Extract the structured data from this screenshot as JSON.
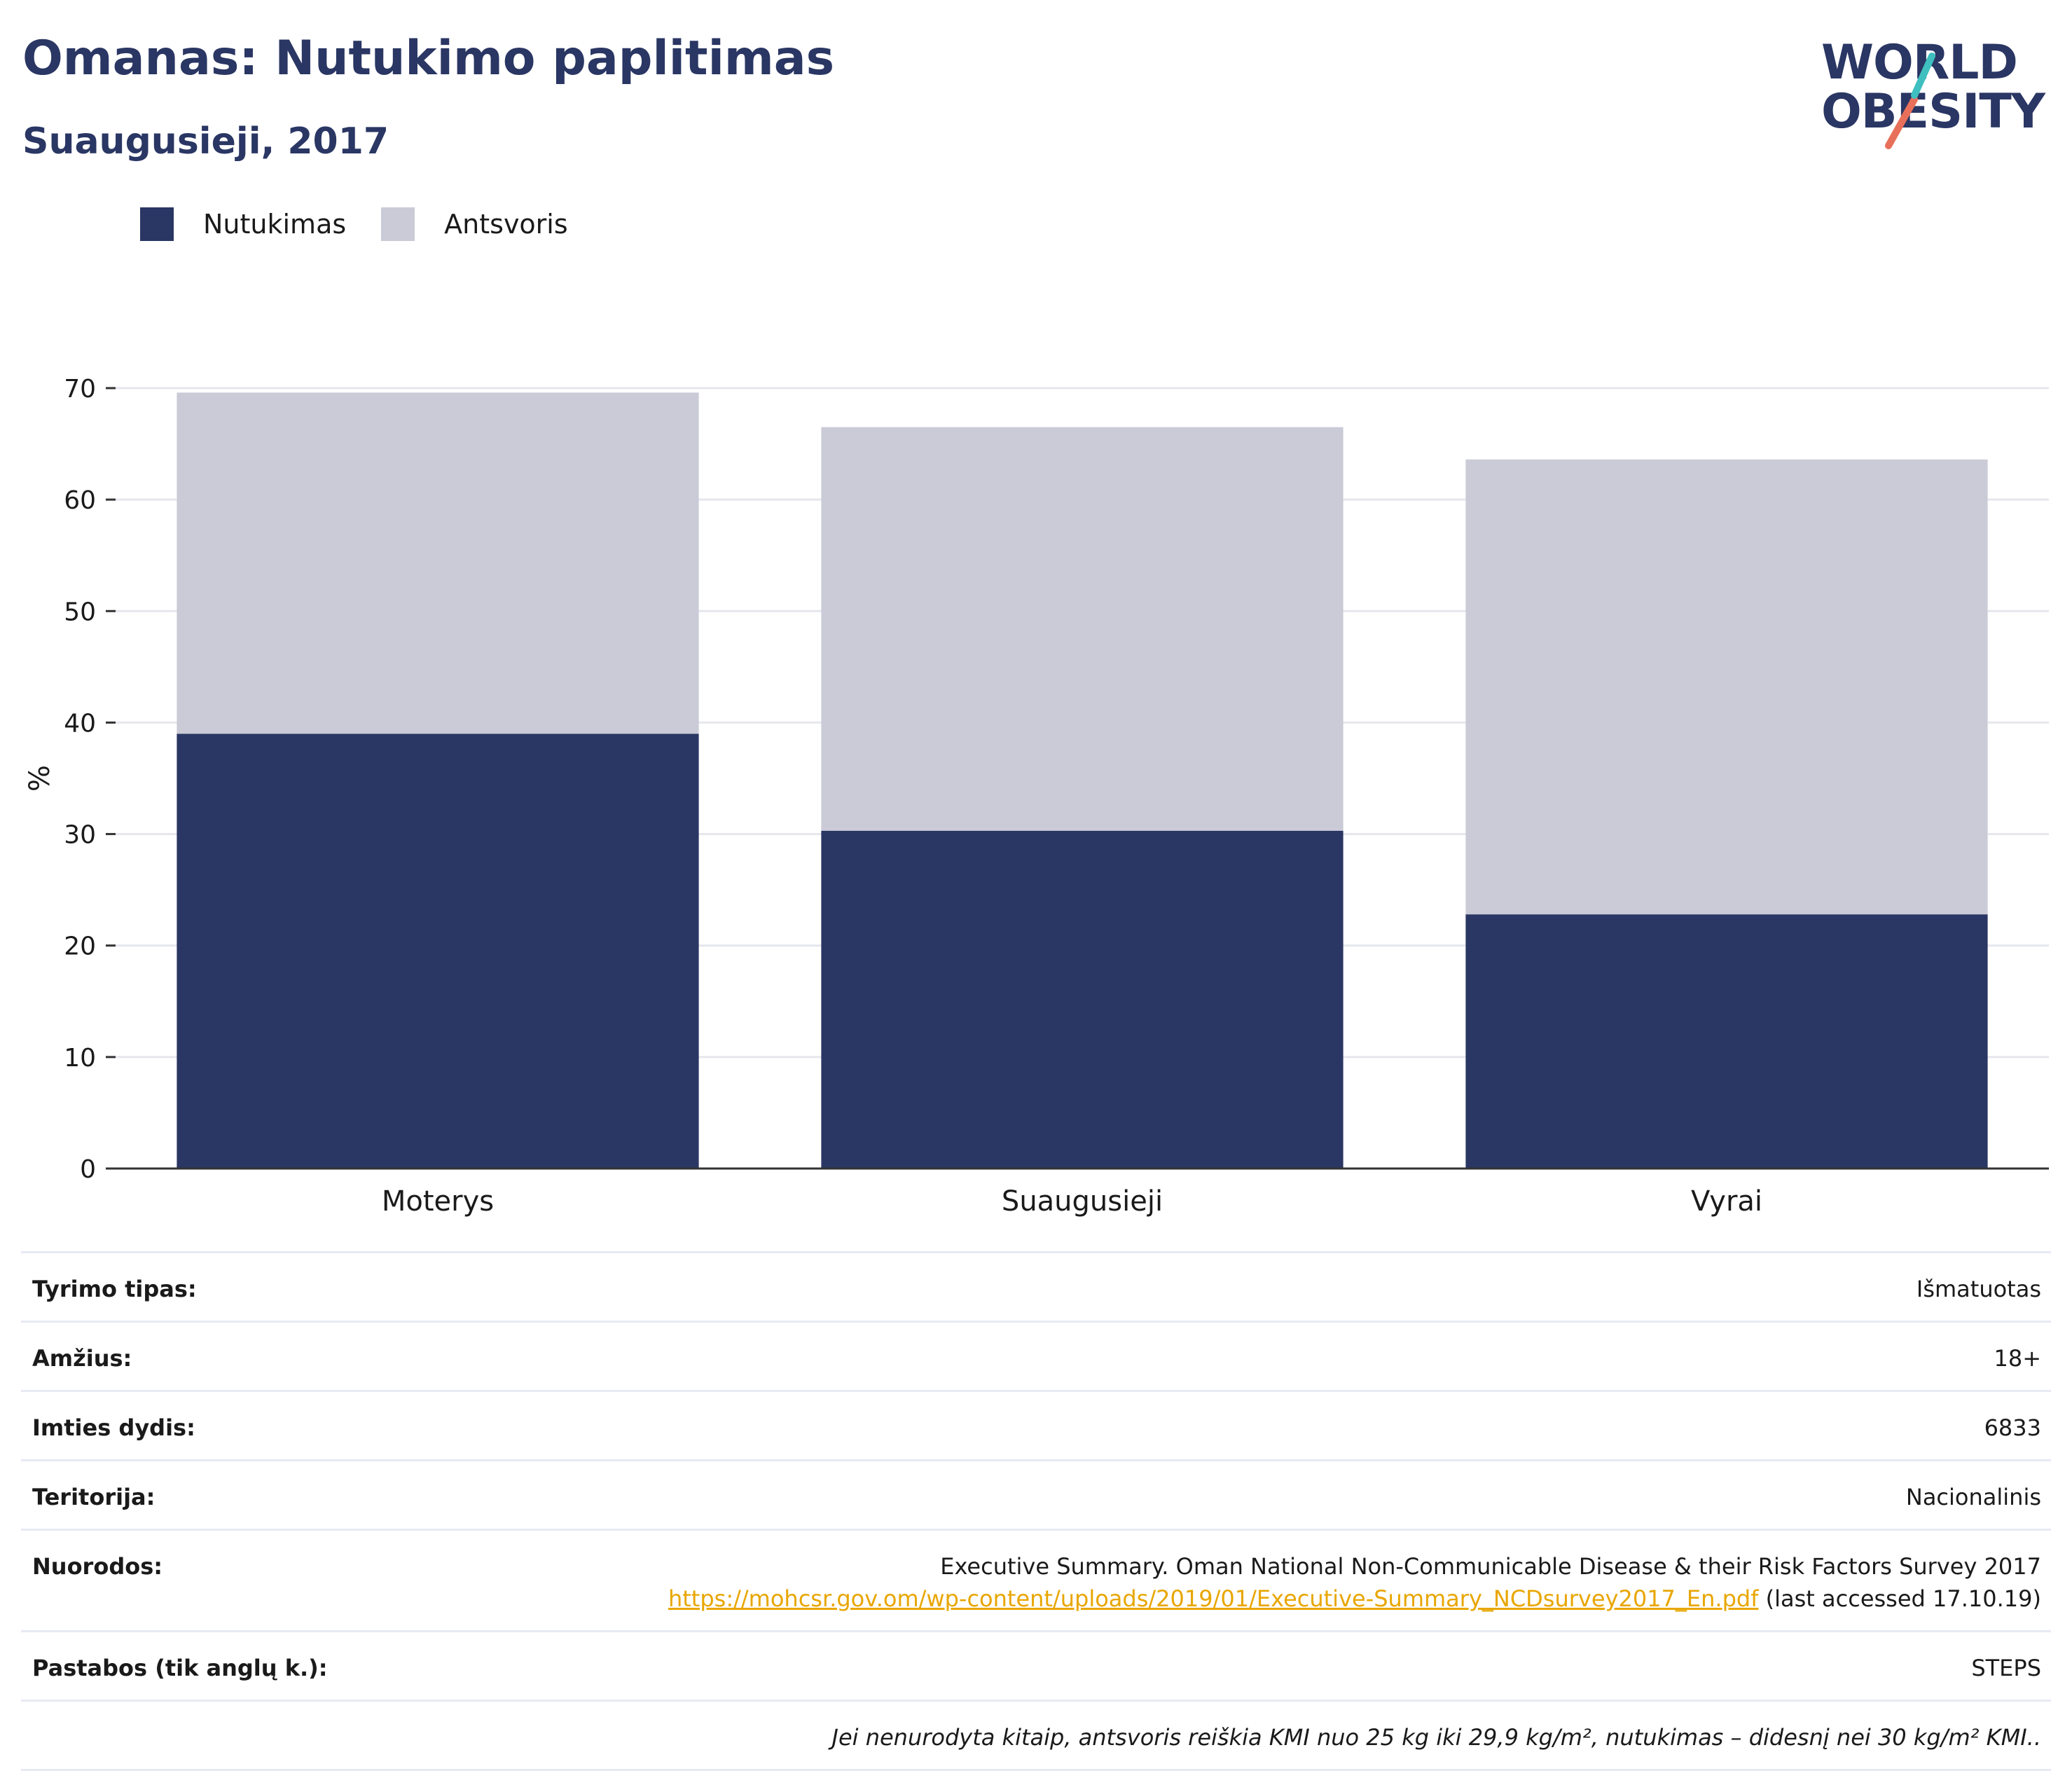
{
  "header": {
    "title": "Omanas: Nutukimo paplitimas",
    "subtitle": "Suaugusieji, 2017"
  },
  "logo": {
    "line1": "WORLD",
    "line2": "OBESITY",
    "colors": {
      "teal": "#3fbfbf",
      "coral": "#e8705a",
      "navy": "#2a3663"
    }
  },
  "legend": {
    "items": [
      {
        "label": "Nutukimas",
        "color": "#2a3663"
      },
      {
        "label": "Antsvoris",
        "color": "#cacbd7"
      }
    ]
  },
  "chart_data": {
    "type": "bar",
    "stacked": true,
    "categories": [
      "Moterys",
      "Suaugusieji",
      "Vyrai"
    ],
    "series": [
      {
        "name": "Nutukimas",
        "color": "#2a3663",
        "values": [
          39.0,
          30.3,
          22.8
        ]
      },
      {
        "name": "Antsvoris",
        "color": "#cacbd7",
        "values": [
          30.6,
          36.2,
          40.8
        ]
      }
    ],
    "ylabel": "%",
    "ylim": [
      0,
      70
    ],
    "yticks": [
      0,
      10,
      20,
      30,
      40,
      50,
      60,
      70
    ],
    "grid": true,
    "legend_position": "top-left"
  },
  "info": {
    "rows": [
      {
        "label": "Tyrimo tipas:",
        "value": "Išmatuotas"
      },
      {
        "label": "Amžius:",
        "value": "18+"
      },
      {
        "label": "Imties dydis:",
        "value": "6833"
      },
      {
        "label": "Teritorija:",
        "value": "Nacionalinis"
      }
    ],
    "references": {
      "label": "Nuorodos:",
      "text": "Executive Summary. Oman National Non-Communicable Disease & their Risk Factors Survey 2017 ",
      "link": "https://mohcsr.gov.om/wp-content/uploads/2019/01/Executive-Summary_NCDsurvey2017_En.pdf",
      "suffix": " (last accessed 17.10.19)"
    },
    "notes": {
      "label": "Pastabos (tik anglų k.):",
      "value": "STEPS"
    },
    "footnote": "Jei nenurodyta kitaip, antsvoris reiškia KMI nuo 25 kg iki 29,9 kg/m², nutukimas – didesnį nei 30 kg/m² KMI.."
  }
}
